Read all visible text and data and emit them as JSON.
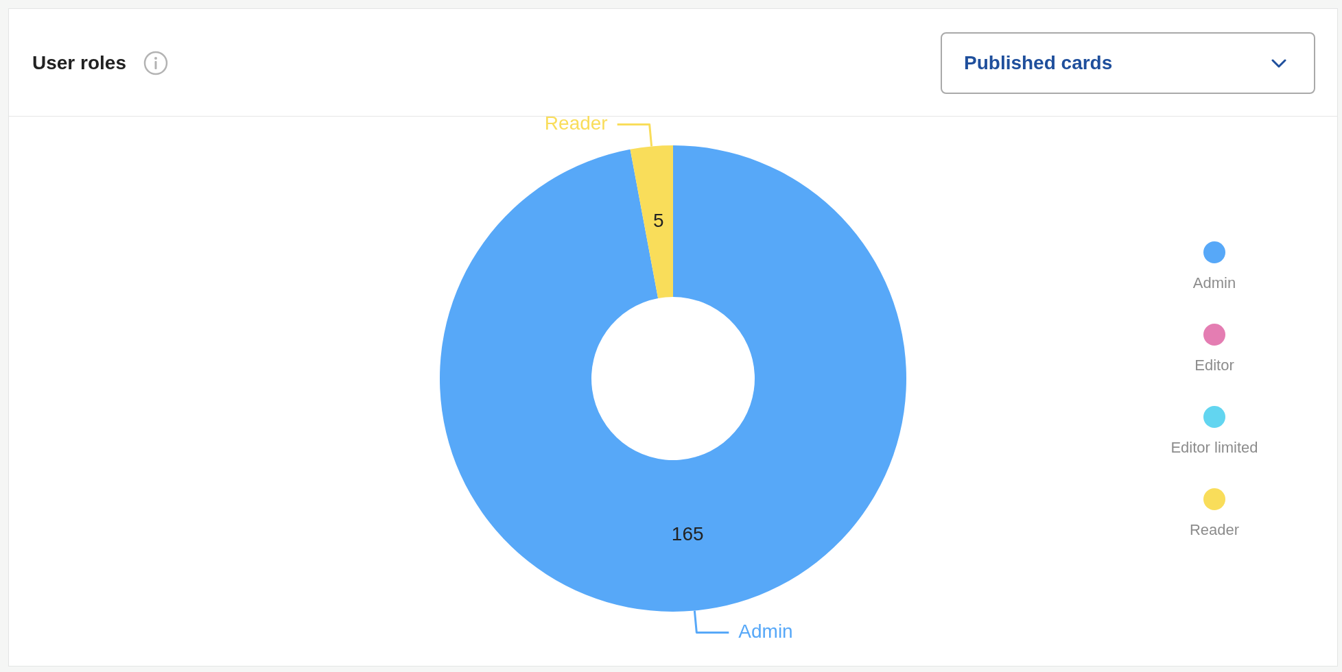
{
  "chart_data": {
    "type": "donut",
    "title": "User roles",
    "subtitle": "Published cards",
    "categories": [
      "Admin",
      "Editor",
      "Editor limited",
      "Reader"
    ],
    "values": [
      165,
      0,
      0,
      5
    ],
    "colors": [
      "#57a8f8",
      "#e47db2",
      "#62d5f0",
      "#f9dd5a"
    ],
    "value_labels": [
      "165",
      null,
      null,
      "5"
    ],
    "legend": "right"
  }
}
